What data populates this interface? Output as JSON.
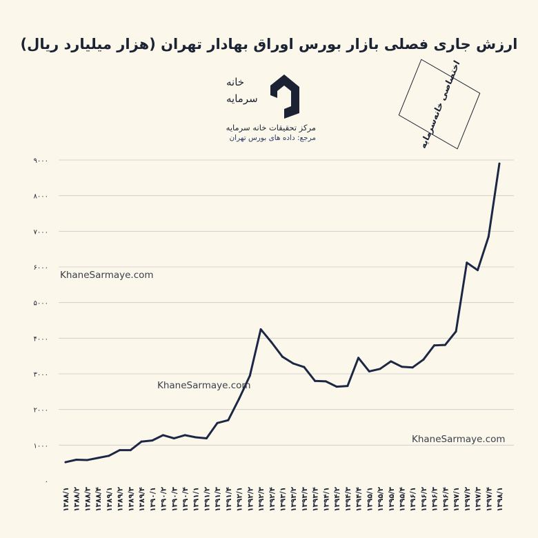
{
  "chart_data": {
    "type": "line",
    "title": "ارزش جاری فصلی بازار بورس اوراق بهادار تهران (هزار میلیارد ریال)",
    "x": [
      "۱۳۸۸/۱",
      "۱۳۸۸/۲",
      "۱۳۸۸/۳",
      "۱۳۸۸/۴",
      "۱۳۸۹/۱",
      "۱۳۸۹/۲",
      "۱۳۸۹/۳",
      "۱۳۸۹/۴",
      "۱۳۹۰/۱",
      "۱۳۹۰/۲",
      "۱۳۹۰/۳",
      "۱۳۹۰/۴",
      "۱۳۹۱/۱",
      "۱۳۹۱/۲",
      "۱۳۹۱/۳",
      "۱۳۹۱/۴",
      "۱۳۹۲/۱",
      "۱۳۹۲/۲",
      "۱۳۹۲/۳",
      "۱۳۹۲/۴",
      "۱۳۹۳/۱",
      "۱۳۹۳/۲",
      "۱۳۹۳/۳",
      "۱۳۹۳/۴",
      "۱۳۹۴/۱",
      "۱۳۹۴/۲",
      "۱۳۹۴/۳",
      "۱۳۹۴/۴",
      "۱۳۹۵/۱",
      "۱۳۹۵/۲",
      "۱۳۹۵/۳",
      "۱۳۹۵/۴",
      "۱۳۹۶/۱",
      "۱۳۹۶/۲",
      "۱۳۹۶/۳",
      "۱۳۹۶/۴",
      "۱۳۹۷/۱",
      "۱۳۹۷/۲",
      "۱۳۹۷/۳",
      "۱۳۹۷/۴",
      "۱۳۹۸/۱"
    ],
    "values": [
      520,
      590,
      580,
      640,
      700,
      860,
      860,
      1100,
      1130,
      1280,
      1190,
      1280,
      1220,
      1190,
      1620,
      1700,
      2300,
      2950,
      4250,
      3880,
      3480,
      3290,
      3190,
      2800,
      2790,
      2640,
      2660,
      3450,
      3070,
      3140,
      3350,
      3200,
      3180,
      3400,
      3800,
      3810,
      4190,
      6120,
      5910,
      6850,
      8900
    ],
    "ylim": [
      0,
      9000
    ],
    "yticks": [
      0,
      1000,
      2000,
      3000,
      4000,
      5000,
      6000,
      7000,
      8000,
      9000
    ],
    "ytick_labels": [
      "۰",
      "۱۰۰۰",
      "۲۰۰۰",
      "۳۰۰۰",
      "۴۰۰۰",
      "۵۰۰۰",
      "۶۰۰۰",
      "۷۰۰۰",
      "۸۰۰۰",
      "۹۰۰۰"
    ],
    "grid": true,
    "line_color": "#1b2744"
  },
  "logo": {
    "brand_line1": "خانه",
    "brand_line2": "سرمایه",
    "org": "مرکز تحقیقات خانه سرمایه",
    "source": "مرجع: داده های بورس تهران",
    "color": "#1b2233"
  },
  "stamp": {
    "text": "اختصاصی خانه‌سرمایه"
  },
  "watermarks": [
    "KhaneSarmaye.com",
    "KhaneSarmaye.com",
    "KhaneSarmaye.com"
  ],
  "colors": {
    "background": "#fbf7ea",
    "grid": "#c9c9c9",
    "text": "#1b2233"
  }
}
